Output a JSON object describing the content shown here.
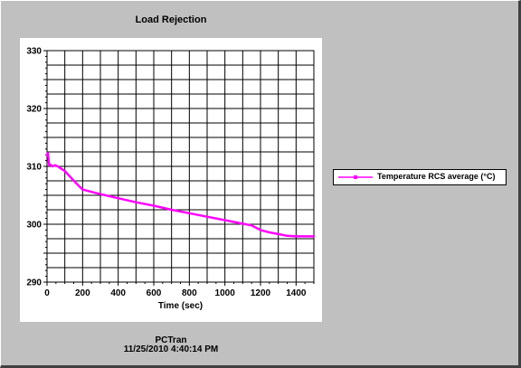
{
  "chart_data": {
    "type": "line",
    "title": "Load Rejection",
    "xlabel": "Time (sec)",
    "ylabel": "",
    "xlim": [
      0,
      1500
    ],
    "ylim": [
      290,
      330
    ],
    "xticks": [
      0,
      200,
      400,
      600,
      800,
      1000,
      1200,
      1400
    ],
    "yticks": [
      290,
      300,
      310,
      320,
      330
    ],
    "grid": true,
    "legend_position": "right",
    "series": [
      {
        "name": "Temperature RCS average (°C)",
        "color": "#ff00ff",
        "x": [
          0,
          5,
          12,
          20,
          30,
          45,
          60,
          80,
          100,
          130,
          160,
          200,
          250,
          300,
          400,
          500,
          600,
          700,
          800,
          900,
          1000,
          1100,
          1150,
          1200,
          1250,
          1300,
          1350,
          1400,
          1450,
          1500
        ],
        "y": [
          312,
          312.3,
          310.2,
          310.3,
          310,
          310.2,
          310,
          309.6,
          309.2,
          308.2,
          307.2,
          306,
          305.6,
          305.2,
          304.5,
          303.8,
          303.2,
          302.5,
          301.9,
          301.3,
          300.7,
          300.1,
          299.8,
          299,
          298.6,
          298.3,
          298,
          297.9,
          297.9,
          297.9
        ]
      }
    ]
  },
  "footer": {
    "app_name": "PCTran",
    "timestamp": "11/25/2010 4:40:14 PM"
  }
}
